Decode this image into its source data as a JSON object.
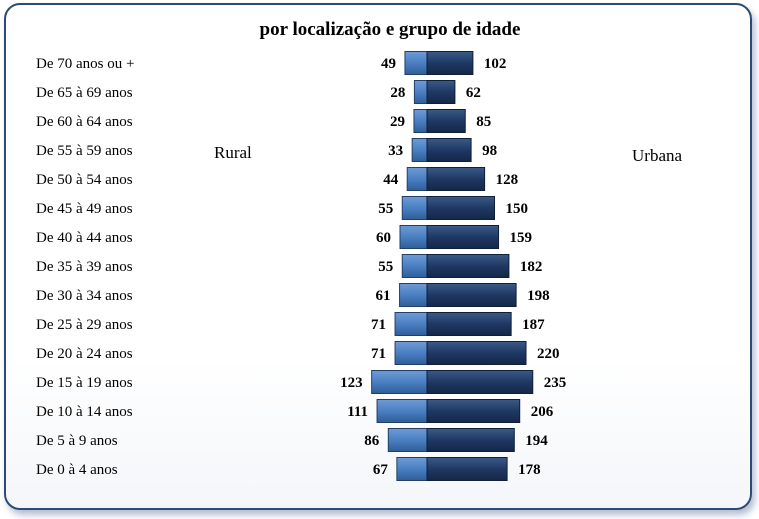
{
  "chart_data": {
    "type": "bar",
    "orientation": "horizontal-pyramid",
    "title": "por localização e grupo de idade",
    "categories": [
      "De 70 anos ou +",
      "De 65 à 69 anos",
      "De 60 à 64 anos",
      "De 55 à 59 anos",
      "De 50 à 54 anos",
      "De 45 à 49 anos",
      "De 40 à 44 anos",
      "De 35 à 39 anos",
      "De 30 à 34 anos",
      "De 25 à 29 anos",
      "De 20 à 24 anos",
      "De 15 à 19 anos",
      "De 10 à 14 anos",
      "De 5 à 9 anos",
      "De 0 à 4 anos"
    ],
    "series": [
      {
        "name": "Rural",
        "side": "left",
        "color": "#4a7fc2",
        "values": [
          49,
          28,
          29,
          33,
          44,
          55,
          60,
          55,
          61,
          71,
          71,
          123,
          111,
          86,
          67
        ]
      },
      {
        "name": "Urbana",
        "side": "right",
        "color": "#1f3864",
        "values": [
          102,
          62,
          85,
          98,
          128,
          150,
          159,
          182,
          198,
          187,
          220,
          235,
          206,
          194,
          178
        ]
      }
    ],
    "grid": false,
    "legend": "inline labels"
  }
}
